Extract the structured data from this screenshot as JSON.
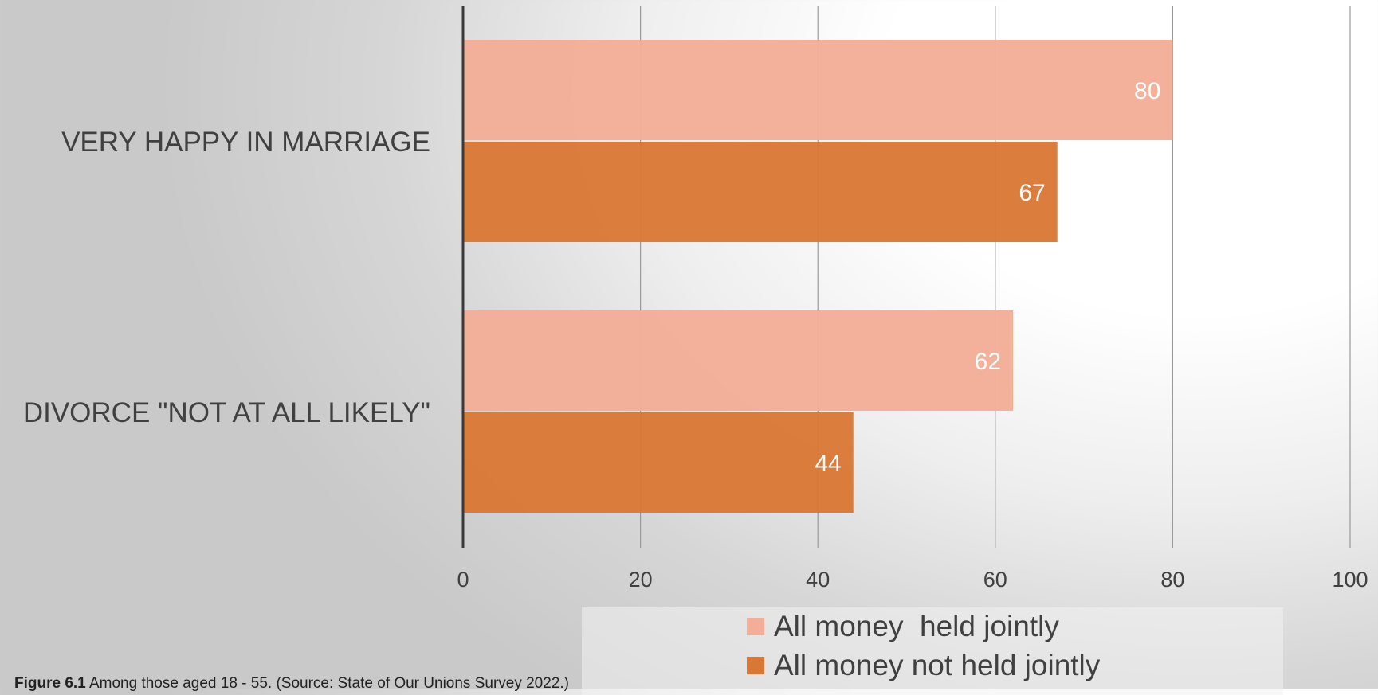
{
  "chart_data": {
    "type": "bar",
    "orientation": "horizontal",
    "categories": [
      "VERY HAPPY IN MARRIAGE",
      "DIVORCE \"NOT AT ALL LIKELY\""
    ],
    "series": [
      {
        "name": "All money  held jointly",
        "values": [
          80,
          62
        ],
        "color": "#f2ae98"
      },
      {
        "name": "All money not held jointly",
        "values": [
          67,
          44
        ],
        "color": "#d97835"
      }
    ],
    "xlim": [
      0,
      100
    ],
    "xticks": [
      0,
      20,
      40,
      60,
      80,
      100
    ],
    "grid": true,
    "legend": "bottom"
  },
  "caption": {
    "label": "Figure 6.1",
    "text": " Among those aged 18 - 55. (Source: State of Our Unions Survey 2022.)"
  }
}
